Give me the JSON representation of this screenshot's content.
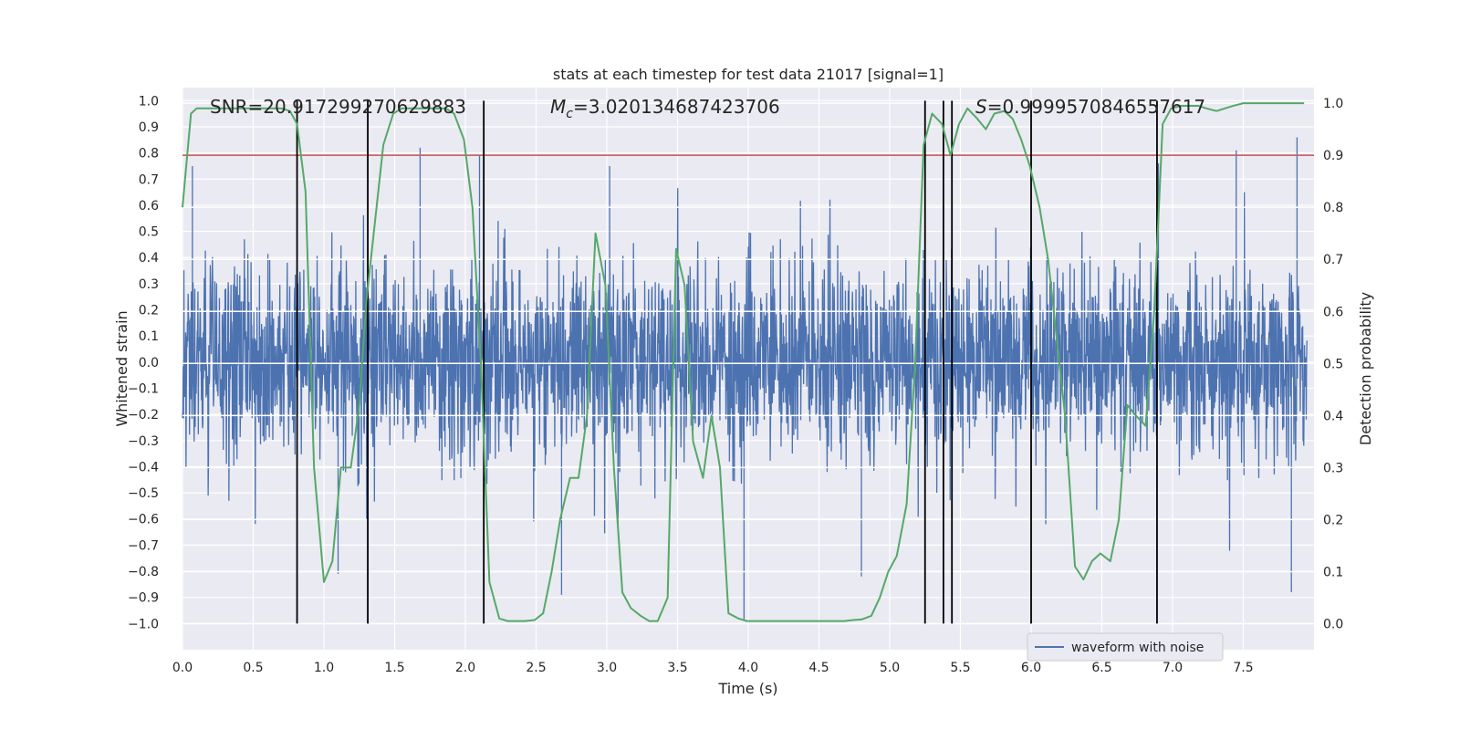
{
  "chart_data": {
    "type": "line",
    "title": "stats at each timestep for test data 21017 [signal=1]",
    "xlabel": "Time (s)",
    "ylabel_left": "Whitened strain",
    "ylabel_right": "Detection probability",
    "xlim": [
      0.0,
      8.0
    ],
    "ylim_left": [
      -1.1,
      1.05
    ],
    "ylim_right": [
      -0.05,
      1.03
    ],
    "x_ticks": [
      0.0,
      0.5,
      1.0,
      1.5,
      2.0,
      2.5,
      3.0,
      3.5,
      4.0,
      4.5,
      5.0,
      5.5,
      6.0,
      6.5,
      7.0,
      7.5
    ],
    "x_tick_labels": [
      "0.0",
      "0.5",
      "1.0",
      "1.5",
      "2.0",
      "2.5",
      "3.0",
      "3.5",
      "4.0",
      "4.5",
      "5.0",
      "5.5",
      "6.0",
      "6.5",
      "7.0",
      "7.5"
    ],
    "y_ticks_left": [
      -1.0,
      -0.9,
      -0.8,
      -0.7,
      -0.6,
      -0.5,
      -0.4,
      -0.3,
      -0.2,
      -0.1,
      0.0,
      0.1,
      0.2,
      0.3,
      0.4,
      0.5,
      0.6,
      0.7,
      0.8,
      0.9,
      1.0
    ],
    "y_tick_labels_left": [
      "−1.0",
      "−0.9",
      "−0.8",
      "−0.7",
      "−0.6",
      "−0.5",
      "−0.4",
      "−0.3",
      "−0.2",
      "−0.1",
      "0.0",
      "0.1",
      "0.2",
      "0.3",
      "0.4",
      "0.5",
      "0.6",
      "0.7",
      "0.8",
      "0.9",
      "1.0"
    ],
    "y_ticks_right": [
      0.0,
      0.1,
      0.2,
      0.3,
      0.4,
      0.5,
      0.6,
      0.7,
      0.8,
      0.9,
      1.0
    ],
    "y_tick_labels_right": [
      "0.0",
      "0.1",
      "0.2",
      "0.3",
      "0.4",
      "0.5",
      "0.6",
      "0.7",
      "0.8",
      "0.9",
      "1.0"
    ],
    "annotations": {
      "snr": "SNR=20.917299270629883",
      "mc_symbol": "M",
      "mc_sub": "c",
      "mc_value": "=3.020134687423706",
      "s_symbol": "S",
      "s_value": "=0.9999570846557617"
    },
    "legend": {
      "location": "lower-right",
      "entries": [
        "waveform with noise"
      ]
    },
    "grid": true,
    "colors": {
      "waveform": "#4c72b0",
      "probability": "#55a868",
      "threshold": "#c44e52",
      "markers": "#000000",
      "plot_background": "#eaeaf2",
      "grid": "#ffffff"
    },
    "waveform": {
      "name": "waveform with noise",
      "description_range": [
        -0.99,
        0.86
      ],
      "typical_envelope": [
        -0.45,
        0.45
      ],
      "notable_peaks": [
        {
          "x": 0.07,
          "y": 0.75
        },
        {
          "x": 1.68,
          "y": 0.82
        },
        {
          "x": 2.1,
          "y": 0.79
        },
        {
          "x": 3.02,
          "y": 0.75
        },
        {
          "x": 5.25,
          "y": 0.82
        },
        {
          "x": 6.9,
          "y": 0.76
        },
        {
          "x": 7.45,
          "y": 0.81
        },
        {
          "x": 7.88,
          "y": 0.86
        }
      ],
      "notable_troughs": [
        {
          "x": 1.1,
          "y": -0.81
        },
        {
          "x": 2.68,
          "y": -0.89
        },
        {
          "x": 3.97,
          "y": -0.99
        },
        {
          "x": 4.8,
          "y": -0.82
        },
        {
          "x": 7.84,
          "y": -0.88
        }
      ]
    },
    "threshold_right": 0.9,
    "vertical_markers": [
      0.81,
      1.31,
      2.13,
      5.25,
      5.38,
      5.44,
      6.0,
      6.89
    ],
    "vertical_marker_range_left": [
      -1.0,
      1.0
    ],
    "probability": {
      "axis": "right",
      "x": [
        0.0,
        0.06,
        0.1,
        0.2,
        0.3,
        0.4,
        0.5,
        0.6,
        0.7,
        0.76,
        0.81,
        0.87,
        0.93,
        1.0,
        1.06,
        1.12,
        1.19,
        1.25,
        1.3,
        1.36,
        1.42,
        1.49,
        1.55,
        1.62,
        1.68,
        1.74,
        1.8,
        1.86,
        1.92,
        1.99,
        2.05,
        2.11,
        2.17,
        2.24,
        2.3,
        2.36,
        2.42,
        2.49,
        2.55,
        2.61,
        2.67,
        2.74,
        2.8,
        2.86,
        2.92,
        2.99,
        3.05,
        3.11,
        3.17,
        3.24,
        3.3,
        3.36,
        3.43,
        3.49,
        3.55,
        3.61,
        3.68,
        3.74,
        3.8,
        3.86,
        3.93,
        3.99,
        4.05,
        4.11,
        4.18,
        4.24,
        4.3,
        4.36,
        4.43,
        4.49,
        4.55,
        4.61,
        4.68,
        4.74,
        4.8,
        4.87,
        4.93,
        4.99,
        5.05,
        5.12,
        5.18,
        5.24,
        5.3,
        5.37,
        5.43,
        5.49,
        5.55,
        5.62,
        5.68,
        5.74,
        5.81,
        5.87,
        5.93,
        5.99,
        6.06,
        6.12,
        6.18,
        6.24,
        6.31,
        6.37,
        6.43,
        6.49,
        6.56,
        6.62,
        6.68,
        6.74,
        6.81,
        6.87,
        6.93,
        6.99,
        7.06,
        7.12,
        7.18,
        7.24,
        7.31,
        7.37,
        7.43,
        7.5,
        7.56,
        7.62,
        7.68,
        7.75,
        7.81,
        7.88,
        7.93
      ],
      "y": [
        0.8,
        0.98,
        0.99,
        0.99,
        0.99,
        0.99,
        0.99,
        0.99,
        0.99,
        0.985,
        0.96,
        0.83,
        0.3,
        0.08,
        0.12,
        0.3,
        0.3,
        0.42,
        0.62,
        0.77,
        0.92,
        0.98,
        0.99,
        0.99,
        0.99,
        0.99,
        0.99,
        0.99,
        0.98,
        0.93,
        0.8,
        0.5,
        0.08,
        0.01,
        0.005,
        0.005,
        0.005,
        0.007,
        0.02,
        0.1,
        0.2,
        0.28,
        0.28,
        0.4,
        0.75,
        0.65,
        0.3,
        0.06,
        0.03,
        0.015,
        0.005,
        0.005,
        0.05,
        0.72,
        0.65,
        0.35,
        0.28,
        0.4,
        0.3,
        0.02,
        0.01,
        0.005,
        0.005,
        0.005,
        0.005,
        0.005,
        0.005,
        0.005,
        0.005,
        0.005,
        0.005,
        0.005,
        0.005,
        0.007,
        0.008,
        0.015,
        0.05,
        0.1,
        0.13,
        0.23,
        0.5,
        0.92,
        0.98,
        0.96,
        0.9,
        0.96,
        0.99,
        0.97,
        0.95,
        0.98,
        0.985,
        0.97,
        0.93,
        0.88,
        0.8,
        0.7,
        0.55,
        0.4,
        0.11,
        0.085,
        0.12,
        0.135,
        0.12,
        0.2,
        0.42,
        0.4,
        0.38,
        0.6,
        0.96,
        0.99,
        0.995,
        0.995,
        0.995,
        0.99,
        0.985,
        0.99,
        0.995,
        1.0,
        1.0,
        1.0,
        1.0,
        1.0,
        1.0,
        1.0,
        1.0
      ]
    }
  }
}
